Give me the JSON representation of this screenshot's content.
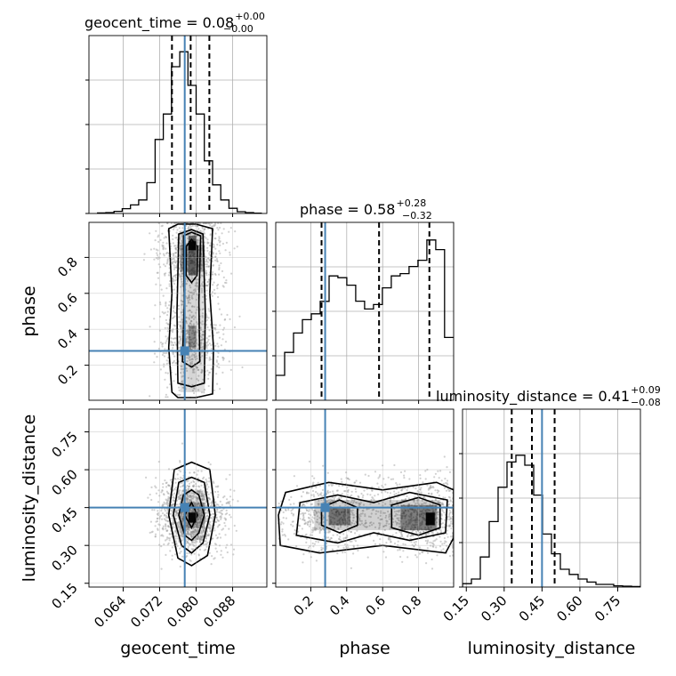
{
  "chart_data": {
    "type": "corner",
    "params": [
      "geocent_time",
      "phase",
      "luminosity_distance"
    ],
    "axis_labels": [
      "geocent_time",
      "phase",
      "luminosity_distance"
    ],
    "truths": [
      0.0775,
      0.28,
      0.45
    ],
    "ranges": [
      [
        0.0565,
        0.0955
      ],
      [
        0.005,
        0.995
      ],
      [
        0.135,
        0.84
      ]
    ],
    "tick_values": [
      [
        0.064,
        0.072,
        0.08,
        0.088
      ],
      [
        0.2,
        0.4,
        0.6,
        0.8
      ],
      [
        0.15,
        0.3,
        0.45,
        0.6,
        0.75
      ]
    ],
    "tick_labels": [
      [
        "0.064",
        "0.072",
        "0.080",
        "0.088"
      ],
      [
        "0.2",
        "0.4",
        "0.6",
        "0.8"
      ],
      [
        "0.15",
        "0.30",
        "0.45",
        "0.60",
        "0.75"
      ]
    ],
    "titles": [
      {
        "text": "geocent_time = 0.08",
        "plus": "+0.00",
        "minus": "−0.00"
      },
      {
        "text": "phase = 0.58",
        "plus": "+0.28",
        "minus": "−0.32"
      },
      {
        "text": "luminosity_distance = 0.41",
        "plus": "+0.09",
        "minus": "−0.08"
      }
    ],
    "quantiles": [
      [
        0.0747,
        0.0788,
        0.0829
      ],
      [
        0.26,
        0.58,
        0.86
      ],
      [
        0.33,
        0.41,
        0.5
      ]
    ],
    "histograms": [
      {
        "param": "geocent_time",
        "bin_edges_start": 0.0584,
        "bin_width": 0.0018,
        "counts": [
          0.3,
          0.5,
          1.2,
          2.7,
          4.8,
          7.6,
          17.3,
          41.6,
          55.9,
          82.5,
          90.9,
          72.0,
          55.9,
          29.6,
          16.1,
          7.6,
          2.9,
          1.0,
          0.5,
          0.2
        ]
      },
      {
        "param": "phase",
        "bin_edges_start": 0.005,
        "bin_width": 0.04946,
        "counts": [
          14.0,
          26.9,
          37.8,
          45.3,
          48.6,
          55.6,
          69.9,
          68.9,
          64.7,
          55.7,
          51.3,
          53.8,
          63.2,
          69.9,
          71.2,
          75.2,
          78.7,
          90.1,
          84.7,
          35.3
        ]
      },
      {
        "param": "luminosity_distance",
        "bin_edges_start": 0.135,
        "bin_width": 0.03525,
        "counts": [
          1.9,
          4.5,
          16.9,
          36.8,
          56.1,
          70.3,
          74.1,
          68.5,
          51.7,
          29.8,
          18.7,
          10.0,
          7.1,
          4.5,
          2.8,
          1.5,
          1.5,
          0.7,
          0.5,
          0.3
        ]
      }
    ],
    "grid": true,
    "hist_y_tick_labels": false
  }
}
